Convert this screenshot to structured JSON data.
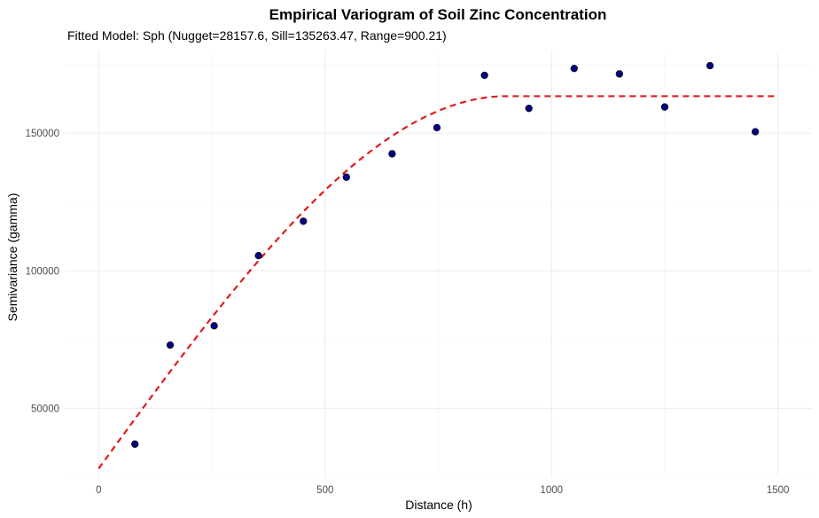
{
  "chart_data": {
    "type": "scatter",
    "title": "Empirical Variogram of Soil Zinc Concentration",
    "subtitle": "Fitted Model: Sph (Nugget=28157.6, Sill=135263.47, Range=900.21)",
    "xlabel": "Distance (h)",
    "ylabel": "Semivariance (gamma)",
    "xlim": [
      -75,
      1575
    ],
    "ylim": [
      25000,
      180000
    ],
    "x_ticks": [
      0,
      500,
      1000,
      1500
    ],
    "x_tick_labels": [
      "0",
      "500",
      "1000",
      "1500"
    ],
    "y_ticks": [
      50000,
      100000,
      150000
    ],
    "y_tick_labels": [
      "50000",
      "100000",
      "150000"
    ],
    "grid": true,
    "legend": "none",
    "series": [
      {
        "kind": "points",
        "color": "#00008b",
        "points": [
          {
            "x": 80,
            "y": 37000
          },
          {
            "x": 158,
            "y": 73000
          },
          {
            "x": 255,
            "y": 80000
          },
          {
            "x": 353,
            "y": 105500
          },
          {
            "x": 452,
            "y": 118000
          },
          {
            "x": 547,
            "y": 134000
          },
          {
            "x": 648,
            "y": 142500
          },
          {
            "x": 747,
            "y": 152000
          },
          {
            "x": 852,
            "y": 171000
          },
          {
            "x": 950,
            "y": 159000
          },
          {
            "x": 1050,
            "y": 173500
          },
          {
            "x": 1150,
            "y": 171500
          },
          {
            "x": 1250,
            "y": 159500
          },
          {
            "x": 1350,
            "y": 174500
          },
          {
            "x": 1450,
            "y": 150500
          }
        ]
      },
      {
        "kind": "fitted-curve",
        "model": "Sph",
        "color": "#e31a1c",
        "line_style": "dashed",
        "nugget": 28157.6,
        "sill": 135263.47,
        "range": 900.21,
        "x_range": [
          0,
          1500
        ]
      }
    ]
  }
}
